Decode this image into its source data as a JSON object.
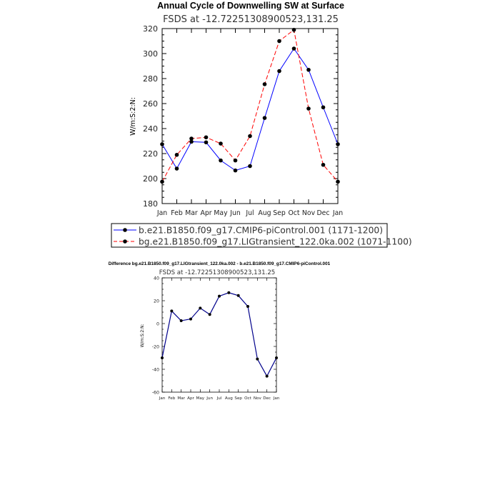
{
  "chart_data": [
    {
      "type": "line",
      "title": "Annual Cycle of Downwelling SW at Surface",
      "subtitle": "FSDS at -12.72251308900523,131.25",
      "xlabel": "",
      "ylabel": "W/m:S:2:N:",
      "categories": [
        "Jan",
        "Feb",
        "Mar",
        "Apr",
        "May",
        "Jun",
        "Jul",
        "Aug",
        "Sep",
        "Oct",
        "Nov",
        "Dec",
        "Jan"
      ],
      "ylim": [
        180,
        320
      ],
      "yticks": [
        180,
        200,
        220,
        240,
        260,
        280,
        300,
        320
      ],
      "grid": false,
      "legend_placement": "bottom",
      "series": [
        {
          "name": "b.e21.B1850.f09_g17.CMIP6-piControl.001 (1171-1200)",
          "color": "#0000ff",
          "dash": "solid",
          "values": [
            227.5,
            208,
            229.5,
            229,
            214.5,
            206.5,
            210,
            248.5,
            286,
            304,
            287,
            257,
            227.5
          ]
        },
        {
          "name": "bg.e21.B1850.f09_g17.LIGtransient_122.0ka.002 (1071-1100)",
          "color": "#ff0000",
          "dash": "dashed",
          "values": [
            197.5,
            219,
            232,
            233,
            228,
            214.5,
            234,
            275.5,
            310,
            319,
            256,
            211,
            197.5
          ]
        }
      ]
    },
    {
      "type": "line",
      "title": "Difference bg.e21.B1850.f09_g17.LIGtransient_122.0ka.002 - b.e21.B1850.f09_g17.CMIP6-piControl.001",
      "subtitle": "FSDS at -12.72251308900523,131.25",
      "xlabel": "",
      "ylabel": "W/m:S:2:N:",
      "categories": [
        "Jan",
        "Feb",
        "Mar",
        "Apr",
        "May",
        "Jun",
        "Jul",
        "Aug",
        "Sep",
        "Oct",
        "Nov",
        "Dec",
        "Jan"
      ],
      "ylim": [
        -60,
        40
      ],
      "yticks": [
        -60,
        -40,
        -20,
        0,
        20,
        40
      ],
      "grid": false,
      "series": [
        {
          "color": "#00008b",
          "values": [
            -30,
            11,
            2.5,
            4,
            13.5,
            8,
            24,
            27,
            24.5,
            15,
            -31,
            -46,
            -30
          ]
        }
      ]
    }
  ]
}
